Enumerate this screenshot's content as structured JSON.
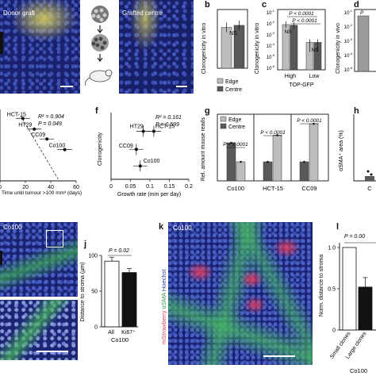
{
  "figure": {
    "panel_letters": {
      "b": "b",
      "c": "c",
      "d": "d",
      "f": "f",
      "g": "g",
      "h": "h",
      "j": "j",
      "k": "k",
      "l": "l"
    },
    "microscopy": {
      "donor_graft_label": "Donor graft",
      "grafted_centre_label": "Grafted centre",
      "co100_label_i": "Co100",
      "co100_label_k": "Co100",
      "k_stain_mstrawberry": "mStrawberry",
      "k_stain_asma": "αSMA",
      "k_stain_hoechst": "Hoechst",
      "colors": {
        "nuclei": "#2a3594",
        "clone": "#e6dc5a",
        "stroma": "#46b45a",
        "mstrawberry": "#e83c5a"
      }
    }
  },
  "chart_data": [
    {
      "id": "b",
      "type": "bar",
      "ylabel": "Clonogenicity in vitro",
      "yscale": "log",
      "categories": [
        "Edge",
        "Centre"
      ],
      "values": [
        0.003,
        0.0045
      ],
      "annotation": "NS",
      "legend": [
        "Edge",
        "Centre"
      ],
      "legend_placement": "bottom",
      "colors": [
        "#bdbdbd",
        "#595959"
      ]
    },
    {
      "id": "c",
      "type": "bar",
      "ylabel": "Clonogenicity in vitro",
      "xlabel": "TOP-GFP",
      "yscale": "log",
      "categories": [
        "High",
        "Low"
      ],
      "series": [
        {
          "name": "Edge",
          "values": [
            0.009,
            0.00025
          ]
        },
        {
          "name": "Centre",
          "values": [
            0.008,
            0.00025
          ]
        }
      ],
      "annotations": [
        "P < 0.0001",
        "P < 0.0001",
        "NS",
        "NS"
      ]
    },
    {
      "id": "d",
      "type": "bar",
      "ylabel": "Clonogenicity in vivo",
      "annotation": "P"
    },
    {
      "id": "e",
      "type": "scatter",
      "xlabel": "Time until tumour >100 mm³ (days)",
      "xticks": [
        "0",
        "20",
        "40",
        "60"
      ],
      "points": [
        {
          "label": "HCT-15",
          "x": 18,
          "y": 0.82
        },
        {
          "label": "HT29",
          "x": 27,
          "y": 0.68
        },
        {
          "label": "CC09",
          "x": 37,
          "y": 0.55
        },
        {
          "label": "Co100",
          "x": 51,
          "y": 0.41
        }
      ],
      "stats": {
        "r2": "R² = 0.904",
        "p": "P = 0.049"
      }
    },
    {
      "id": "f",
      "type": "scatter",
      "xlabel": "Growth rate (mm per day)",
      "ylabel": "Clonogenicity",
      "xticks": [
        "0",
        "0.05",
        "0.1",
        "0.15",
        "0.2"
      ],
      "xlim": [
        0,
        0.2
      ],
      "points": [
        {
          "label": "HT29",
          "x": 0.083,
          "y": 0.72
        },
        {
          "label": "HCT-15",
          "x": 0.11,
          "y": 0.72
        },
        {
          "label": "CC09",
          "x": 0.065,
          "y": 0.45
        },
        {
          "label": "Co100",
          "x": 0.075,
          "y": 0.2
        }
      ],
      "stats": {
        "r2": "R² = 0.161",
        "p": "P = 0.599"
      }
    },
    {
      "id": "g",
      "type": "bar",
      "ylabel": "Rel. amount mouse reads",
      "categories": [
        "Co100",
        "HCT-15",
        "CC09"
      ],
      "series": [
        {
          "name": "Edge",
          "values": [
            1,
            2.4,
            3
          ]
        },
        {
          "name": "Centre",
          "values": [
            2,
            1.0,
            1.0
          ]
        }
      ],
      "annotations": [
        "P < 0.0001",
        "P < 0.0001",
        "P < 0.0001"
      ],
      "legend": [
        "Edge",
        "Centre"
      ],
      "legend_placement": "top-left",
      "colors": [
        "#bdbdbd",
        "#595959"
      ]
    },
    {
      "id": "h",
      "type": "bar",
      "ylabel": "αSMA⁺ area (%)",
      "categories": [
        "C"
      ]
    },
    {
      "id": "j",
      "type": "bar",
      "ylabel": "Distance to stroma (µm)",
      "yticks": [
        "0",
        "50",
        "100"
      ],
      "ylim": [
        0,
        100
      ],
      "categories": [
        "All",
        "Ki67⁺"
      ],
      "values": [
        92,
        76
      ],
      "xlabel": "Co100",
      "annotation": "P = 0.02",
      "colors": [
        "#ffffff",
        "#111111"
      ]
    },
    {
      "id": "l",
      "type": "bar",
      "ylabel": "Norm. distance to stroma",
      "yticks": [
        "0",
        "0.5",
        "1.0"
      ],
      "ylim": [
        0,
        1
      ],
      "categories": [
        "Small clones",
        "Large clones"
      ],
      "values": [
        1.0,
        0.52
      ],
      "xlabel": "Co100",
      "annotation": "P = 0.00",
      "colors": [
        "#ffffff",
        "#111111"
      ]
    }
  ]
}
